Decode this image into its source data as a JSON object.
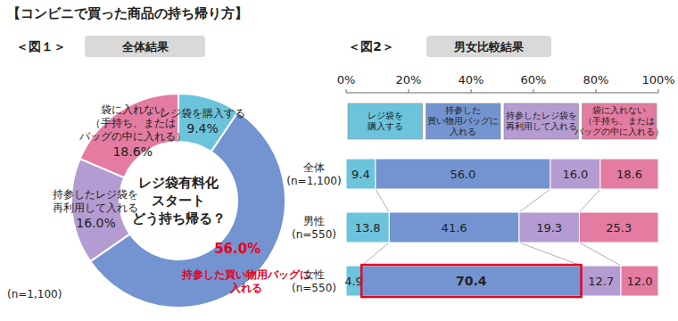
{
  "title": "【コンビニで買った商品の持ち帰り方】",
  "chart_data": [
    {
      "type": "pie",
      "subtitle": "全体結果",
      "annotations": [
        "＜図１＞",
        "レジ袋有料化\nスタート\nどう持ち帰る？",
        "(n=1,100)"
      ],
      "categories": [
        "レジ袋を購入する",
        "持参した買い物用バッグに\n入れる",
        "持参したレジ袋を\n再利用して入れる",
        "袋に入れない\n（手持ち、または\nバッグの中に入れる）"
      ],
      "values": [
        9.4,
        56.0,
        16.0,
        18.6
      ],
      "value_labels": [
        "9.4%",
        "56.0%",
        "16.0%",
        "18.6%"
      ],
      "colors": [
        "#6cc4dc",
        "#7394d0",
        "#b49bd2",
        "#e47ba1"
      ],
      "data_labels": true
    },
    {
      "type": "bar",
      "subtitle": "男女比較結果",
      "annotations": [
        "＜図2＞"
      ],
      "orientation": "horizontal",
      "stacked": true,
      "data_labels": true,
      "legend": "top",
      "grid": false,
      "categories": [
        "全体\n(n=1,100)",
        "男性\n(n=550)",
        "女性\n(n=550)"
      ],
      "xlim": [
        0,
        100
      ],
      "xticks": [
        {
          "value": 0,
          "label": "0%"
        },
        {
          "value": 20,
          "label": "20%"
        },
        {
          "value": 40,
          "label": "40%"
        },
        {
          "value": 60,
          "label": "60%"
        },
        {
          "value": 80,
          "label": "80%"
        },
        {
          "value": 100,
          "label": "100%"
        }
      ],
      "series": [
        {
          "name": "レジ袋を\n購入する",
          "color": "#6cc4dc",
          "values": [
            9.4,
            13.8,
            4.9
          ],
          "value_labels": [
            "9.4",
            "13.8",
            "4.9"
          ]
        },
        {
          "name": "持参した\n買い物用バッグに\n入れる",
          "color": "#7394d0",
          "values": [
            56.0,
            41.6,
            70.4
          ],
          "value_labels": [
            "56.0",
            "41.6",
            "70.4"
          ]
        },
        {
          "name": "持参したレジ袋を\n再利用して入れる",
          "color": "#b49bd2",
          "values": [
            16.0,
            19.3,
            12.7
          ],
          "value_labels": [
            "16.0",
            "19.3",
            "12.7"
          ]
        },
        {
          "name": "袋に入れない\n（手持ち、または\nバッグの中に入れる）",
          "color": "#e47ba1",
          "values": [
            18.6,
            25.3,
            12.0
          ],
          "value_labels": [
            "18.6",
            "25.3",
            "12.0"
          ]
        }
      ]
    }
  ]
}
